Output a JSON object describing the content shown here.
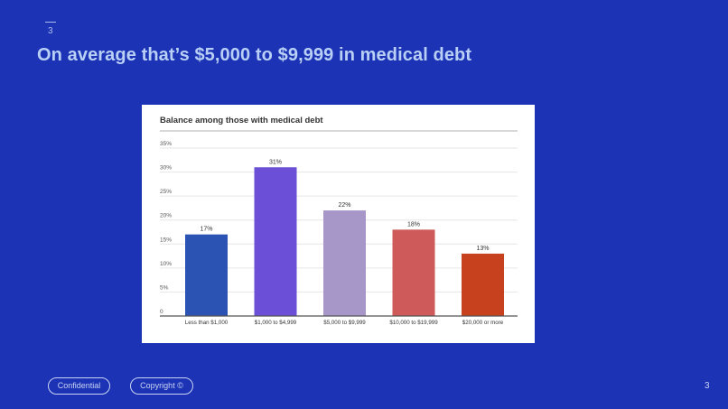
{
  "slide": {
    "number": "3",
    "title": "On average that’s $5,000 to $9,999 in medical debt"
  },
  "footer": {
    "confidential": "Confidential",
    "copyright": "Copyright ©",
    "page_number": "3"
  },
  "chart_data": {
    "type": "bar",
    "title": "Balance among those with medical debt",
    "xlabel": "",
    "ylabel": "",
    "ylim": [
      0,
      35
    ],
    "grid": true,
    "yticks": [
      "0",
      "5%",
      "10%",
      "15%",
      "20%",
      "25%",
      "30%",
      "35%"
    ],
    "categories": [
      "Less than $1,000",
      "$1,000 to $4,999",
      "$5,000 to $9,999",
      "$10,000 to $19,999",
      "$20,000 or more"
    ],
    "values": [
      17,
      31,
      22,
      18,
      13
    ],
    "data_labels": [
      "17%",
      "31%",
      "22%",
      "18%",
      "13%"
    ],
    "colors": [
      "#2a53b3",
      "#6b4fd6",
      "#a796c8",
      "#cf5a5a",
      "#c8411e"
    ]
  }
}
